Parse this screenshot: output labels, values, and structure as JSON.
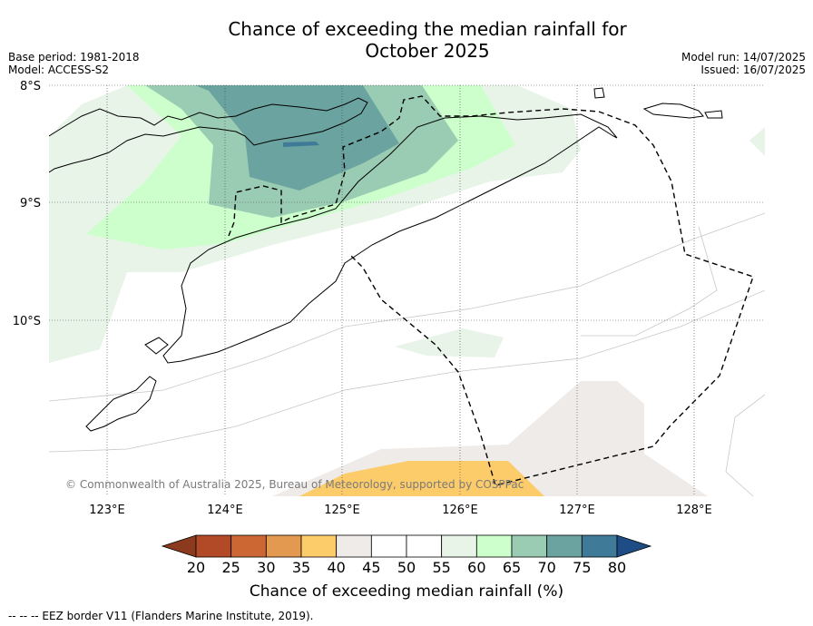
{
  "title_line1": "Chance of exceeding the median rainfall for",
  "title_line2": "October 2025",
  "base_period": "Base period: 1981-2018",
  "model": "Model: ACCESS-S2",
  "model_run": "Model run: 14/07/2025",
  "issued": "Issued: 16/07/2025",
  "copyright": "© Commonwealth of Australia 2025, Bureau of Meteorology, supported by COSPPac",
  "lat_labels": [
    "8°S",
    "9°S",
    "10°S"
  ],
  "lon_labels": [
    "123°E",
    "124°E",
    "125°E",
    "126°E",
    "127°E",
    "128°E"
  ],
  "colorbar": {
    "label": "Chance of exceeding median rainfall (%)",
    "ticks": [
      "20",
      "25",
      "30",
      "35",
      "40",
      "45",
      "50",
      "55",
      "60",
      "65",
      "70",
      "75",
      "80"
    ],
    "bins": [
      {
        "range": "20-25",
        "color": "#b34a27"
      },
      {
        "range": "25-30",
        "color": "#cc6633"
      },
      {
        "range": "30-35",
        "color": "#e3994f"
      },
      {
        "range": "35-40",
        "color": "#fccb6a"
      },
      {
        "range": "40-45",
        "color": "#efebe8"
      },
      {
        "range": "45-50",
        "color": "#ffffff"
      },
      {
        "range": "50-55",
        "color": "#ffffff"
      },
      {
        "range": "55-60",
        "color": "#e8f4e8"
      },
      {
        "range": "60-65",
        "color": "#ccffcc"
      },
      {
        "range": "65-70",
        "color": "#99ccb2"
      },
      {
        "range": "70-75",
        "color": "#6aa39f"
      },
      {
        "range": "75-80",
        "color": "#3f7a99"
      }
    ],
    "under_color": "#8b3a1e",
    "over_color": "#1e4d85"
  },
  "legend_note": "--  --  -- EEZ border V11 (Flanders Marine Institute, 2019)."
}
